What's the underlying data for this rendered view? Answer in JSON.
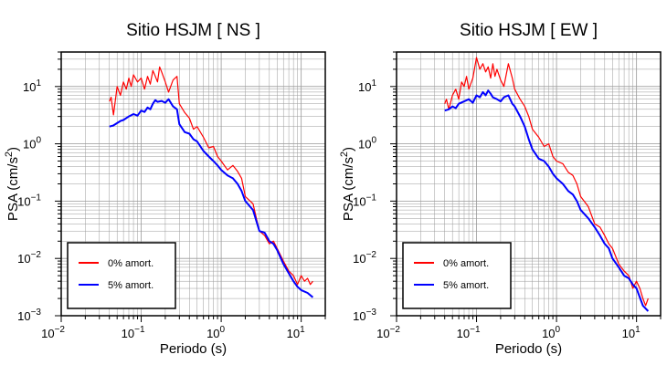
{
  "chart_data": [
    {
      "type": "line",
      "title": "Sitio HSJM [ NS ]",
      "xlabel": "Periodo (s)",
      "ylabel_main": "PSA (cm/s",
      "ylabel_sup": "2",
      "ylabel_tail": ")",
      "x_scale": "log",
      "y_scale": "log",
      "xlim": [
        0.01,
        20
      ],
      "ylim": [
        0.001,
        40
      ],
      "grid": true,
      "legend_position": "bottom-left",
      "x_ticks": [
        {
          "base": "10",
          "exp": "−2"
        },
        {
          "base": "10",
          "exp": "−1"
        },
        {
          "base": "10",
          "exp": "0"
        },
        {
          "base": "10",
          "exp": "1"
        }
      ],
      "y_ticks": [
        {
          "base": "10",
          "exp": "−3"
        },
        {
          "base": "10",
          "exp": "−2"
        },
        {
          "base": "10",
          "exp": "−1"
        },
        {
          "base": "10",
          "exp": "0"
        },
        {
          "base": "10",
          "exp": "1"
        }
      ],
      "series": [
        {
          "name": "0% amort.",
          "color": "#ff0000",
          "x": [
            0.04,
            0.042,
            0.045,
            0.05,
            0.055,
            0.06,
            0.065,
            0.07,
            0.075,
            0.08,
            0.09,
            0.1,
            0.11,
            0.12,
            0.13,
            0.14,
            0.15,
            0.16,
            0.17,
            0.18,
            0.2,
            0.22,
            0.25,
            0.28,
            0.3,
            0.35,
            0.4,
            0.45,
            0.5,
            0.6,
            0.7,
            0.8,
            0.9,
            1.0,
            1.2,
            1.4,
            1.6,
            1.8,
            2.0,
            2.5,
            3.0,
            3.5,
            4.0,
            4.5,
            5.0,
            6.0,
            7.0,
            8.0,
            9.0,
            10.0,
            11.0,
            12.0,
            13.0,
            14.0
          ],
          "y": [
            5.5,
            6.5,
            3.2,
            10,
            7,
            12,
            9,
            14,
            10,
            16,
            12,
            14,
            9,
            15,
            11,
            19,
            15,
            12,
            22,
            18,
            12,
            8,
            13,
            15,
            5,
            3.5,
            2.8,
            1.8,
            2.0,
            1.3,
            0.85,
            0.9,
            0.6,
            0.5,
            0.35,
            0.42,
            0.33,
            0.25,
            0.12,
            0.09,
            0.03,
            0.025,
            0.018,
            0.02,
            0.015,
            0.009,
            0.006,
            0.005,
            0.0035,
            0.005,
            0.004,
            0.0045,
            0.0035,
            0.004
          ]
        },
        {
          "name": "5% amort.",
          "color": "#0000ff",
          "x": [
            0.04,
            0.045,
            0.05,
            0.055,
            0.06,
            0.07,
            0.08,
            0.09,
            0.1,
            0.11,
            0.12,
            0.13,
            0.14,
            0.15,
            0.16,
            0.18,
            0.2,
            0.22,
            0.25,
            0.28,
            0.3,
            0.35,
            0.4,
            0.45,
            0.5,
            0.6,
            0.7,
            0.8,
            0.9,
            1.0,
            1.2,
            1.4,
            1.6,
            1.8,
            2.0,
            2.5,
            3.0,
            3.5,
            4.0,
            4.5,
            5.0,
            6.0,
            7.0,
            8.0,
            9.0,
            10.0,
            12.0,
            14.0
          ],
          "y": [
            2.0,
            2.1,
            2.3,
            2.5,
            2.6,
            3.0,
            3.3,
            3.1,
            3.8,
            3.6,
            4.3,
            4.0,
            5.0,
            5.8,
            5.4,
            5.6,
            5.2,
            6.0,
            4.5,
            4.0,
            2.2,
            1.6,
            1.5,
            1.2,
            1.1,
            0.75,
            0.6,
            0.5,
            0.42,
            0.35,
            0.28,
            0.25,
            0.2,
            0.15,
            0.1,
            0.07,
            0.03,
            0.028,
            0.02,
            0.018,
            0.014,
            0.008,
            0.0055,
            0.004,
            0.0032,
            0.0028,
            0.0025,
            0.0021
          ]
        }
      ]
    },
    {
      "type": "line",
      "title": "Sitio HSJM [ EW ]",
      "xlabel": "Periodo (s)",
      "ylabel_main": "PSA (cm/s",
      "ylabel_sup": "2",
      "ylabel_tail": ")",
      "x_scale": "log",
      "y_scale": "log",
      "xlim": [
        0.01,
        20
      ],
      "ylim": [
        0.001,
        40
      ],
      "grid": true,
      "legend_position": "bottom-left",
      "x_ticks": [
        {
          "base": "10",
          "exp": "−2"
        },
        {
          "base": "10",
          "exp": "−1"
        },
        {
          "base": "10",
          "exp": "0"
        },
        {
          "base": "10",
          "exp": "1"
        }
      ],
      "y_ticks": [
        {
          "base": "10",
          "exp": "−3"
        },
        {
          "base": "10",
          "exp": "−2"
        },
        {
          "base": "10",
          "exp": "−1"
        },
        {
          "base": "10",
          "exp": "0"
        },
        {
          "base": "10",
          "exp": "1"
        }
      ],
      "series": [
        {
          "name": "0% amort.",
          "color": "#ff0000",
          "x": [
            0.04,
            0.042,
            0.045,
            0.05,
            0.055,
            0.06,
            0.065,
            0.07,
            0.075,
            0.08,
            0.09,
            0.1,
            0.11,
            0.12,
            0.13,
            0.14,
            0.15,
            0.16,
            0.17,
            0.18,
            0.2,
            0.22,
            0.25,
            0.28,
            0.3,
            0.35,
            0.4,
            0.45,
            0.5,
            0.6,
            0.7,
            0.8,
            0.9,
            1.0,
            1.2,
            1.4,
            1.6,
            1.8,
            2.0,
            2.5,
            3.0,
            3.5,
            4.0,
            4.5,
            5.0,
            6.0,
            7.0,
            8.0,
            9.0,
            10.0,
            11.0,
            12.0,
            13.0,
            14.0
          ],
          "y": [
            5.0,
            6.0,
            4.0,
            7.0,
            9.0,
            6.0,
            12,
            10,
            15,
            9,
            14,
            32,
            20,
            25,
            18,
            22,
            14,
            25,
            15,
            20,
            13,
            10,
            25,
            14,
            9,
            6,
            4.5,
            3.0,
            1.8,
            1.3,
            0.9,
            1.0,
            0.6,
            0.5,
            0.45,
            0.32,
            0.28,
            0.2,
            0.12,
            0.08,
            0.04,
            0.035,
            0.025,
            0.018,
            0.015,
            0.008,
            0.006,
            0.005,
            0.003,
            0.004,
            0.003,
            0.002,
            0.0015,
            0.002
          ]
        },
        {
          "name": "5% amort.",
          "color": "#0000ff",
          "x": [
            0.04,
            0.045,
            0.05,
            0.055,
            0.06,
            0.07,
            0.08,
            0.09,
            0.1,
            0.11,
            0.12,
            0.13,
            0.14,
            0.15,
            0.16,
            0.18,
            0.2,
            0.22,
            0.25,
            0.28,
            0.3,
            0.35,
            0.4,
            0.45,
            0.5,
            0.6,
            0.7,
            0.8,
            0.9,
            1.0,
            1.2,
            1.4,
            1.6,
            1.8,
            2.0,
            2.5,
            3.0,
            3.5,
            4.0,
            4.5,
            5.0,
            6.0,
            7.0,
            8.0,
            9.0,
            10.0,
            12.0,
            14.0
          ],
          "y": [
            3.8,
            4.0,
            4.5,
            4.2,
            5.0,
            5.5,
            6.0,
            5.2,
            7.0,
            6.5,
            8.0,
            7.0,
            8.5,
            7.5,
            6.5,
            6.0,
            5.5,
            6.5,
            7.0,
            5.0,
            4.5,
            3.0,
            2.0,
            1.2,
            0.8,
            0.55,
            0.5,
            0.4,
            0.3,
            0.25,
            0.2,
            0.15,
            0.13,
            0.1,
            0.07,
            0.05,
            0.035,
            0.025,
            0.018,
            0.015,
            0.01,
            0.007,
            0.005,
            0.0045,
            0.0035,
            0.003,
            0.0015,
            0.0012
          ]
        }
      ]
    }
  ]
}
